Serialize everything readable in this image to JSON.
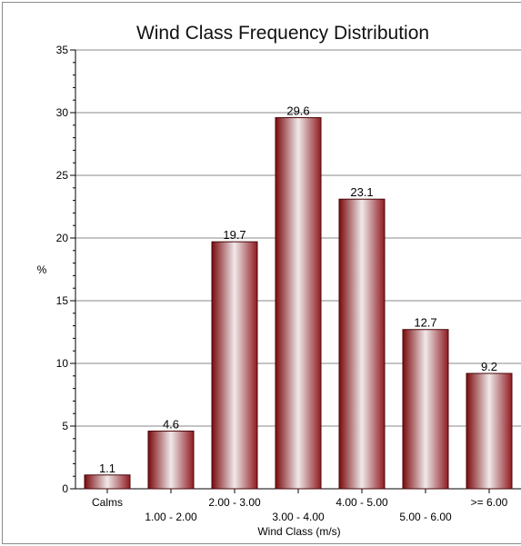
{
  "chart_data": {
    "type": "bar",
    "title": "Wind Class Frequency Distribution",
    "xlabel": "Wind Class (m/s)",
    "ylabel": "%",
    "ylim": [
      0,
      35
    ],
    "yticks": [
      0,
      5,
      10,
      15,
      20,
      25,
      30,
      35
    ],
    "grid": true,
    "categories": [
      "Calms",
      "1.00 - 2.00",
      "2.00 - 3.00",
      "3.00 - 4.00",
      "4.00 - 5.00",
      "5.00 - 6.00",
      ">= 6.00"
    ],
    "values": [
      1.1,
      4.6,
      19.7,
      29.6,
      23.1,
      12.7,
      9.2
    ],
    "value_labels": [
      "1.1",
      "4.6",
      "19.7",
      "29.6",
      "23.1",
      "12.7",
      "9.2"
    ],
    "bar_colors": {
      "edge": "#7a0a0e",
      "mid": "#f0e9e9",
      "dark": "#8e1c22"
    }
  }
}
